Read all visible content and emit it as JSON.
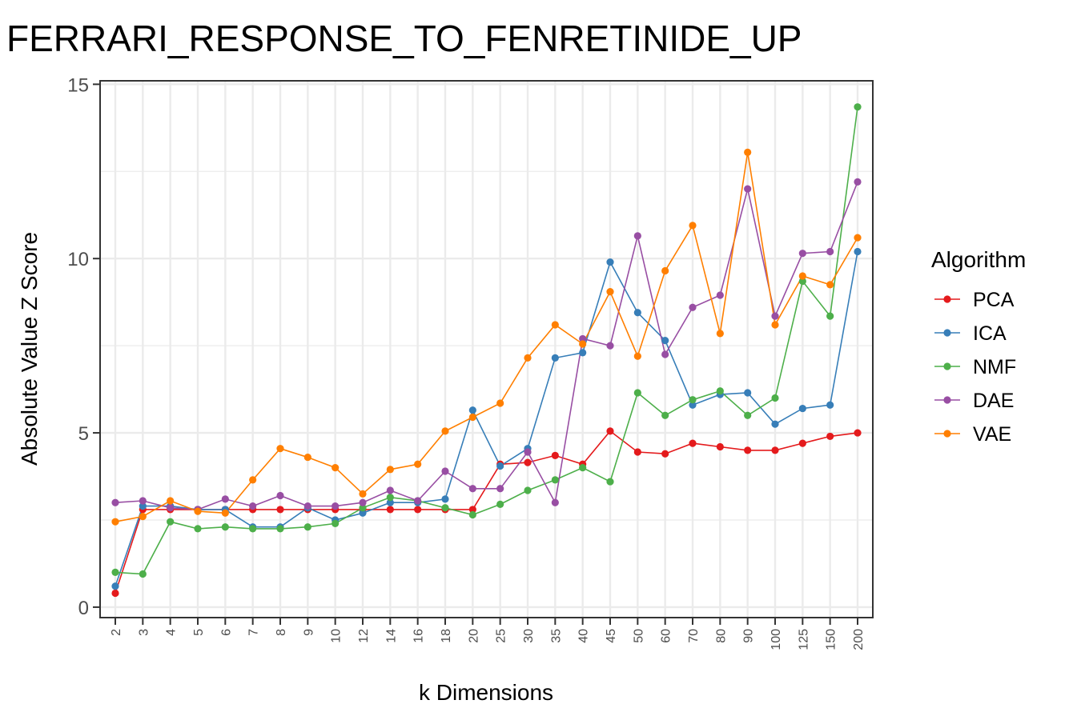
{
  "chart_data": {
    "type": "line",
    "title": "FERRARI_RESPONSE_TO_FENRETINIDE_UP",
    "xlabel": "k Dimensions",
    "ylabel": "Absolute Value Z Score",
    "categories": [
      "2",
      "3",
      "4",
      "5",
      "6",
      "7",
      "8",
      "9",
      "10",
      "12",
      "14",
      "16",
      "18",
      "20",
      "25",
      "30",
      "35",
      "40",
      "45",
      "50",
      "60",
      "70",
      "80",
      "90",
      "100",
      "125",
      "150",
      "200"
    ],
    "yticks": [
      0,
      5,
      10,
      15
    ],
    "ylim": [
      -0.3,
      15.1
    ],
    "grid": true,
    "legend": {
      "title": "Algorithm",
      "position": "right"
    },
    "series": [
      {
        "name": "PCA",
        "color": "#e41a1c",
        "values": [
          0.4,
          2.8,
          2.8,
          2.8,
          2.8,
          2.8,
          2.8,
          2.8,
          2.8,
          2.8,
          2.8,
          2.8,
          2.8,
          2.8,
          4.1,
          4.15,
          4.35,
          4.1,
          5.05,
          4.45,
          4.4,
          4.7,
          4.6,
          4.5,
          4.5,
          4.7,
          4.9,
          5.0
        ]
      },
      {
        "name": "ICA",
        "color": "#377eb8",
        "values": [
          0.6,
          2.9,
          2.9,
          2.8,
          2.8,
          2.3,
          2.3,
          2.85,
          2.5,
          2.7,
          3.0,
          3.0,
          3.1,
          5.65,
          4.05,
          4.55,
          7.15,
          7.3,
          9.9,
          8.45,
          7.65,
          5.8,
          6.1,
          6.15,
          5.25,
          5.7,
          5.8,
          10.2
        ]
      },
      {
        "name": "NMF",
        "color": "#4daf4a",
        "values": [
          1.0,
          0.95,
          2.45,
          2.25,
          2.3,
          2.25,
          2.25,
          2.3,
          2.4,
          2.85,
          3.15,
          3.05,
          2.85,
          2.65,
          2.95,
          3.35,
          3.65,
          4.0,
          3.6,
          6.15,
          5.5,
          5.95,
          6.2,
          5.5,
          6.0,
          9.35,
          8.35,
          14.35
        ]
      },
      {
        "name": "DAE",
        "color": "#984ea3",
        "values": [
          3.0,
          3.05,
          2.85,
          2.8,
          3.1,
          2.9,
          3.2,
          2.9,
          2.9,
          3.0,
          3.35,
          3.05,
          3.9,
          3.4,
          3.4,
          4.45,
          3.0,
          7.7,
          7.5,
          10.65,
          7.25,
          8.6,
          8.95,
          12.0,
          8.35,
          10.15,
          10.2,
          12.2
        ]
      },
      {
        "name": "VAE",
        "color": "#ff7f00",
        "values": [
          2.45,
          2.6,
          3.05,
          2.75,
          2.7,
          3.65,
          4.55,
          4.3,
          4.0,
          3.25,
          3.95,
          4.1,
          5.05,
          5.45,
          5.85,
          7.15,
          8.1,
          7.55,
          9.05,
          7.2,
          9.65,
          10.95,
          7.85,
          13.05,
          8.1,
          9.5,
          9.25,
          10.6
        ]
      }
    ]
  }
}
